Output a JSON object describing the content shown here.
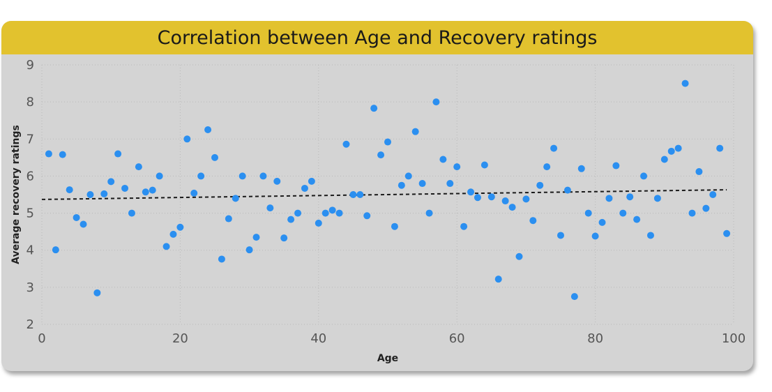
{
  "chart_data": {
    "type": "scatter",
    "title": "Correlation between Age and Recovery ratings",
    "xlabel": "Age",
    "ylabel": "Average recovery ratings",
    "xlim": [
      0,
      100
    ],
    "ylim": [
      2,
      9
    ],
    "x_ticks": [
      "0",
      "20",
      "40",
      "60",
      "80",
      "100"
    ],
    "y_ticks": [
      "2",
      "3",
      "4",
      "5",
      "6",
      "7",
      "8",
      "9"
    ],
    "grid": true,
    "colors": {
      "points": "#2b8ff0",
      "trend": "#1a1a1a",
      "title_bar": "#e2c22e",
      "background": "#d4d4d4"
    },
    "trendline": {
      "x": [
        0,
        99
      ],
      "y": [
        5.37,
        5.63
      ]
    },
    "points": [
      {
        "x": 1,
        "y": 6.6
      },
      {
        "x": 2,
        "y": 4.01
      },
      {
        "x": 3,
        "y": 6.58
      },
      {
        "x": 4,
        "y": 5.63
      },
      {
        "x": 5,
        "y": 4.88
      },
      {
        "x": 6,
        "y": 4.7
      },
      {
        "x": 7,
        "y": 5.5
      },
      {
        "x": 8,
        "y": 2.85
      },
      {
        "x": 9,
        "y": 5.52
      },
      {
        "x": 10,
        "y": 5.85
      },
      {
        "x": 11,
        "y": 6.6
      },
      {
        "x": 12,
        "y": 5.67
      },
      {
        "x": 13,
        "y": 5.0
      },
      {
        "x": 14,
        "y": 6.25
      },
      {
        "x": 15,
        "y": 5.57
      },
      {
        "x": 16,
        "y": 5.62
      },
      {
        "x": 17,
        "y": 6.0
      },
      {
        "x": 18,
        "y": 4.1
      },
      {
        "x": 19,
        "y": 4.43
      },
      {
        "x": 20,
        "y": 4.62
      },
      {
        "x": 21,
        "y": 7.0
      },
      {
        "x": 22,
        "y": 5.54
      },
      {
        "x": 23,
        "y": 6.0
      },
      {
        "x": 24,
        "y": 7.25
      },
      {
        "x": 25,
        "y": 6.5
      },
      {
        "x": 26,
        "y": 3.76
      },
      {
        "x": 27,
        "y": 4.85
      },
      {
        "x": 28,
        "y": 5.4
      },
      {
        "x": 29,
        "y": 6.0
      },
      {
        "x": 30,
        "y": 4.01
      },
      {
        "x": 31,
        "y": 4.35
      },
      {
        "x": 32,
        "y": 6.0
      },
      {
        "x": 33,
        "y": 5.14
      },
      {
        "x": 34,
        "y": 5.86
      },
      {
        "x": 35,
        "y": 4.33
      },
      {
        "x": 36,
        "y": 4.83
      },
      {
        "x": 37,
        "y": 5.0
      },
      {
        "x": 38,
        "y": 5.67
      },
      {
        "x": 39,
        "y": 5.86
      },
      {
        "x": 40,
        "y": 4.73
      },
      {
        "x": 41,
        "y": 5.0
      },
      {
        "x": 42,
        "y": 5.08
      },
      {
        "x": 43,
        "y": 5.0
      },
      {
        "x": 44,
        "y": 6.86
      },
      {
        "x": 45,
        "y": 5.5
      },
      {
        "x": 46,
        "y": 5.5
      },
      {
        "x": 47,
        "y": 4.93
      },
      {
        "x": 48,
        "y": 7.83
      },
      {
        "x": 49,
        "y": 6.57
      },
      {
        "x": 50,
        "y": 6.92
      },
      {
        "x": 51,
        "y": 4.64
      },
      {
        "x": 52,
        "y": 5.75
      },
      {
        "x": 53,
        "y": 6.0
      },
      {
        "x": 54,
        "y": 7.2
      },
      {
        "x": 55,
        "y": 5.8
      },
      {
        "x": 56,
        "y": 5.0
      },
      {
        "x": 57,
        "y": 8.0
      },
      {
        "x": 58,
        "y": 6.45
      },
      {
        "x": 59,
        "y": 5.8
      },
      {
        "x": 60,
        "y": 6.25
      },
      {
        "x": 61,
        "y": 4.64
      },
      {
        "x": 62,
        "y": 5.57
      },
      {
        "x": 63,
        "y": 5.42
      },
      {
        "x": 64,
        "y": 6.3
      },
      {
        "x": 65,
        "y": 5.44
      },
      {
        "x": 66,
        "y": 3.22
      },
      {
        "x": 67,
        "y": 5.33
      },
      {
        "x": 68,
        "y": 5.16
      },
      {
        "x": 69,
        "y": 3.83
      },
      {
        "x": 70,
        "y": 5.38
      },
      {
        "x": 71,
        "y": 4.8
      },
      {
        "x": 72,
        "y": 5.75
      },
      {
        "x": 73,
        "y": 6.25
      },
      {
        "x": 74,
        "y": 6.75
      },
      {
        "x": 75,
        "y": 4.4
      },
      {
        "x": 76,
        "y": 5.62
      },
      {
        "x": 77,
        "y": 2.75
      },
      {
        "x": 78,
        "y": 6.2
      },
      {
        "x": 79,
        "y": 5.0
      },
      {
        "x": 80,
        "y": 4.38
      },
      {
        "x": 81,
        "y": 4.75
      },
      {
        "x": 82,
        "y": 5.4
      },
      {
        "x": 83,
        "y": 6.28
      },
      {
        "x": 84,
        "y": 5.0
      },
      {
        "x": 85,
        "y": 5.44
      },
      {
        "x": 86,
        "y": 4.83
      },
      {
        "x": 87,
        "y": 6.0
      },
      {
        "x": 88,
        "y": 4.4
      },
      {
        "x": 89,
        "y": 5.4
      },
      {
        "x": 90,
        "y": 6.45
      },
      {
        "x": 91,
        "y": 6.67
      },
      {
        "x": 92,
        "y": 6.75
      },
      {
        "x": 93,
        "y": 8.5
      },
      {
        "x": 94,
        "y": 5.0
      },
      {
        "x": 95,
        "y": 6.12
      },
      {
        "x": 96,
        "y": 5.13
      },
      {
        "x": 97,
        "y": 5.5
      },
      {
        "x": 98,
        "y": 6.75
      },
      {
        "x": 99,
        "y": 4.45
      }
    ]
  }
}
